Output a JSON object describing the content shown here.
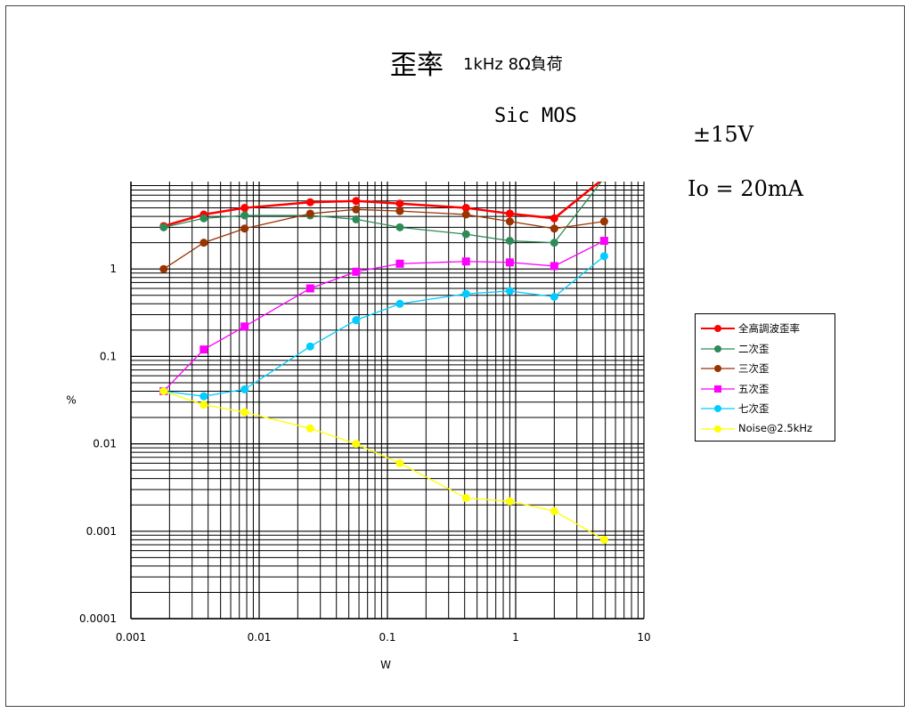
{
  "header": {
    "title": "歪率",
    "subtitle": "1kHz 8Ω負荷",
    "device": "Sic MOS",
    "supply": "±15V",
    "bias": "Io = 20mA"
  },
  "chart_data": {
    "type": "line",
    "xlabel": "W",
    "ylabel": "%",
    "xscale": "log",
    "yscale": "log",
    "xlim": [
      0.001,
      10
    ],
    "ylim": [
      0.0001,
      10
    ],
    "xticks": [
      "0.001",
      "0.01",
      "0.1",
      "1",
      "10"
    ],
    "yticks": [
      "0.0001",
      "0.001",
      "0.01",
      "0.1",
      "1"
    ],
    "grid": true,
    "legend_position": "right",
    "x": [
      0.0018,
      0.0037,
      0.0077,
      0.025,
      0.057,
      0.125,
      0.41,
      0.9,
      2.0,
      4.9
    ],
    "series": [
      {
        "name": "全高調波歪率",
        "color": "#ff0000",
        "marker": "circle",
        "values": [
          3.1,
          4.2,
          5.0,
          5.8,
          6.0,
          5.6,
          5.0,
          4.3,
          3.8,
          11.0
        ]
      },
      {
        "name": "二次歪",
        "color": "#2e8b57",
        "marker": "circle",
        "values": [
          3.0,
          3.8,
          4.1,
          4.1,
          3.7,
          3.0,
          2.5,
          2.1,
          2.0,
          11.0
        ]
      },
      {
        "name": "三次歪",
        "color": "#993300",
        "marker": "circle",
        "values": [
          1.0,
          2.0,
          2.9,
          4.3,
          4.8,
          4.6,
          4.2,
          3.5,
          2.9,
          3.5
        ]
      },
      {
        "name": "五次歪",
        "color": "#ff00ff",
        "marker": "square",
        "values": [
          0.04,
          0.12,
          0.22,
          0.6,
          0.93,
          1.15,
          1.22,
          1.19,
          1.08,
          2.1
        ]
      },
      {
        "name": "七次歪",
        "color": "#00ccff",
        "marker": "circle",
        "values": [
          0.04,
          0.035,
          0.042,
          0.13,
          0.26,
          0.4,
          0.52,
          0.56,
          0.48,
          1.4
        ]
      },
      {
        "name": "Noise@2.5kHz",
        "color": "#ffff00",
        "marker": "circle",
        "values": [
          0.04,
          0.028,
          0.023,
          0.015,
          0.01,
          0.006,
          0.0024,
          0.0022,
          0.0017,
          0.0008
        ]
      }
    ]
  }
}
